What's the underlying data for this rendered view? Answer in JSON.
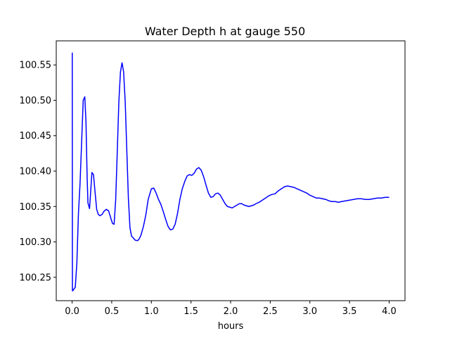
{
  "chart_data": {
    "type": "line",
    "title": "Water Depth h at gauge 550",
    "xlabel": "hours",
    "ylabel": "",
    "xlim": [
      -0.2,
      4.2
    ],
    "ylim": [
      100.217,
      100.584
    ],
    "grid": false,
    "legend": "none",
    "x_ticks": [
      0.0,
      0.5,
      1.0,
      1.5,
      2.0,
      2.5,
      3.0,
      3.5,
      4.0
    ],
    "x_tick_labels": [
      "0.0",
      "0.5",
      "1.0",
      "1.5",
      "2.0",
      "2.5",
      "3.0",
      "3.5",
      "4.0"
    ],
    "y_ticks": [
      100.25,
      100.3,
      100.35,
      100.4,
      100.45,
      100.5,
      100.55
    ],
    "y_tick_labels": [
      "100.25",
      "100.30",
      "100.35",
      "100.40",
      "100.45",
      "100.50",
      "100.55"
    ],
    "series": [
      {
        "color": "#0000ff",
        "x": [
          0.0,
          0.002,
          0.004,
          0.01,
          0.02,
          0.04,
          0.06,
          0.08,
          0.1,
          0.12,
          0.14,
          0.16,
          0.175,
          0.19,
          0.2,
          0.22,
          0.235,
          0.25,
          0.27,
          0.29,
          0.31,
          0.33,
          0.35,
          0.38,
          0.4,
          0.43,
          0.46,
          0.49,
          0.51,
          0.53,
          0.55,
          0.57,
          0.59,
          0.61,
          0.63,
          0.65,
          0.67,
          0.69,
          0.71,
          0.73,
          0.75,
          0.77,
          0.79,
          0.81,
          0.83,
          0.85,
          0.87,
          0.9,
          0.93,
          0.96,
          1.0,
          1.03,
          1.06,
          1.09,
          1.12,
          1.15,
          1.18,
          1.21,
          1.24,
          1.27,
          1.3,
          1.33,
          1.36,
          1.39,
          1.42,
          1.45,
          1.48,
          1.51,
          1.54,
          1.57,
          1.6,
          1.63,
          1.66,
          1.69,
          1.72,
          1.75,
          1.78,
          1.81,
          1.84,
          1.87,
          1.9,
          1.93,
          1.96,
          1.99,
          2.02,
          2.05,
          2.08,
          2.11,
          2.14,
          2.17,
          2.2,
          2.23,
          2.26,
          2.29,
          2.32,
          2.36,
          2.4,
          2.44,
          2.48,
          2.52,
          2.56,
          2.6,
          2.64,
          2.68,
          2.72,
          2.76,
          2.8,
          2.84,
          2.88,
          2.92,
          2.96,
          3.0,
          3.04,
          3.08,
          3.12,
          3.16,
          3.2,
          3.24,
          3.28,
          3.32,
          3.36,
          3.4,
          3.45,
          3.5,
          3.55,
          3.6,
          3.65,
          3.7,
          3.75,
          3.8,
          3.85,
          3.9,
          3.95,
          4.0
        ],
        "y": [
          100.567,
          100.567,
          100.231,
          100.231,
          100.233,
          100.236,
          100.27,
          100.34,
          100.382,
          100.44,
          100.5,
          100.505,
          100.47,
          100.39,
          100.355,
          100.347,
          100.372,
          100.398,
          100.395,
          100.37,
          100.346,
          100.339,
          100.337,
          100.339,
          100.343,
          100.346,
          100.344,
          100.333,
          100.326,
          100.325,
          100.36,
          100.428,
          100.498,
          100.54,
          100.553,
          100.54,
          100.498,
          100.43,
          100.362,
          100.32,
          100.308,
          100.306,
          100.303,
          100.302,
          100.302,
          100.305,
          100.31,
          100.322,
          100.338,
          100.36,
          100.375,
          100.376,
          100.369,
          100.36,
          100.353,
          100.343,
          100.332,
          100.322,
          100.317,
          100.318,
          100.325,
          100.34,
          100.36,
          100.375,
          100.385,
          100.393,
          100.395,
          100.394,
          100.397,
          100.403,
          100.405,
          100.401,
          100.392,
          100.38,
          100.369,
          100.363,
          100.364,
          100.368,
          100.369,
          100.366,
          100.36,
          100.354,
          100.35,
          100.349,
          100.348,
          100.35,
          100.352,
          100.354,
          100.354,
          100.352,
          100.351,
          100.35,
          100.351,
          100.352,
          100.354,
          100.356,
          100.359,
          100.362,
          100.365,
          100.367,
          100.368,
          100.372,
          100.375,
          100.378,
          100.379,
          100.378,
          100.377,
          100.375,
          100.373,
          100.371,
          100.369,
          100.366,
          100.364,
          100.362,
          100.362,
          100.361,
          100.36,
          100.358,
          100.357,
          100.357,
          100.356,
          100.357,
          100.358,
          100.359,
          100.36,
          100.361,
          100.361,
          100.36,
          100.36,
          100.361,
          100.362,
          100.362,
          100.363,
          100.363
        ]
      }
    ]
  }
}
